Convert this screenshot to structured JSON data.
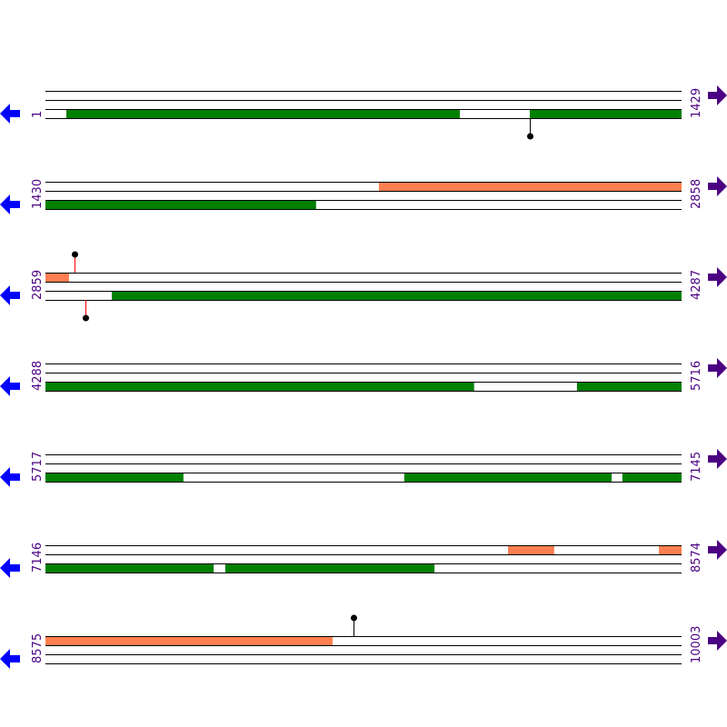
{
  "colors": {
    "forward_feature": "#ff7f50",
    "reverse_feature": "#008000",
    "left_arrow": "#0000ff",
    "right_arrow": "#4b0082",
    "label": "#4b0082",
    "line": "#000000",
    "marker_red": "#ff0000",
    "marker_black": "#000000"
  },
  "icons": {
    "left": "arrow-left-icon",
    "right": "arrow-right-icon"
  },
  "bases_per_row": 1429,
  "rows": [
    {
      "start": 1,
      "end": 1429,
      "start_label": "1",
      "end_label": "1429",
      "forward": [],
      "reverse": [
        [
          48,
          932
        ],
        [
          1089,
          1429
        ]
      ],
      "markers": [
        {
          "pos": 1089,
          "dir": "down",
          "color": "black"
        }
      ]
    },
    {
      "start": 1430,
      "end": 2858,
      "start_label": "1430",
      "end_label": "2858",
      "forward": [
        [
          2179,
          2858
        ]
      ],
      "reverse": [
        [
          1430,
          2038
        ]
      ],
      "markers": []
    },
    {
      "start": 2859,
      "end": 4287,
      "start_label": "2859",
      "end_label": "4287",
      "forward": [
        [
          2859,
          2912
        ]
      ],
      "reverse": [
        [
          3008,
          4287
        ]
      ],
      "markers": [
        {
          "pos": 2924,
          "dir": "up",
          "color": "red"
        },
        {
          "pos": 2949,
          "dir": "down",
          "color": "red"
        }
      ]
    },
    {
      "start": 4288,
      "end": 5716,
      "start_label": "4288",
      "end_label": "5716",
      "forward": [],
      "reverse": [
        [
          4288,
          5251
        ],
        [
          5482,
          5716
        ]
      ],
      "markers": []
    },
    {
      "start": 5717,
      "end": 7145,
      "start_label": "5717",
      "end_label": "7145",
      "forward": [],
      "reverse": [
        [
          5717,
          6027
        ],
        [
          6523,
          6989
        ],
        [
          7013,
          7145
        ]
      ],
      "markers": []
    },
    {
      "start": 7146,
      "end": 8574,
      "start_label": "7146",
      "end_label": "8574",
      "forward": [
        [
          8185,
          8289
        ],
        [
          8524,
          8574
        ]
      ],
      "reverse": [
        [
          7146,
          7524
        ],
        [
          7550,
          8020
        ]
      ],
      "markers": []
    },
    {
      "start": 8575,
      "end": 10003,
      "start_label": "8575",
      "end_label": "10003",
      "forward": [
        [
          8575,
          9220
        ]
      ],
      "reverse": [],
      "markers": [
        {
          "pos": 9267,
          "dir": "up",
          "color": "black"
        }
      ]
    }
  ]
}
